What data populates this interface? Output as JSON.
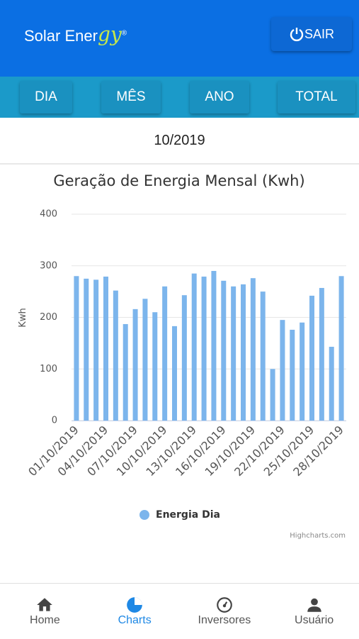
{
  "header": {
    "logo": "Solar Ener",
    "logo_script": "gy",
    "logo_mark": "®",
    "logout": "SAIR"
  },
  "tabs": [
    "DIA",
    "MÊS",
    "ANO",
    "TOTAL"
  ],
  "period": "10/2019",
  "chart_data": {
    "type": "bar",
    "title": "Geração de Energia Mensal (Kwh)",
    "y_label": "Kwh",
    "categories": [
      "01/10/2019",
      null,
      null,
      "04/10/2019",
      null,
      null,
      "07/10/2019",
      null,
      null,
      "10/10/2019",
      null,
      null,
      "13/10/2019",
      null,
      null,
      "16/10/2019",
      null,
      null,
      "19/10/2019",
      null,
      null,
      "22/10/2019",
      null,
      null,
      "25/10/2019",
      null,
      null,
      "28/10/2019"
    ],
    "series": [
      {
        "name": "Energia Dia",
        "color": "#7cb5ec",
        "values": [
          280,
          275,
          273,
          279,
          252,
          187,
          216,
          236,
          210,
          260,
          183,
          243,
          285,
          279,
          290,
          271,
          260,
          264,
          276,
          250,
          100,
          195,
          176,
          190,
          242,
          257,
          143,
          280
        ]
      }
    ],
    "ylim": [
      0,
      400
    ],
    "yticks": [
      0,
      100,
      200,
      300,
      400
    ],
    "grid": true,
    "legend": "bottom",
    "credits": "Highcharts.com"
  },
  "nav": [
    "Home",
    "Charts",
    "Inversores",
    "Usuário"
  ],
  "nav_active": 1
}
